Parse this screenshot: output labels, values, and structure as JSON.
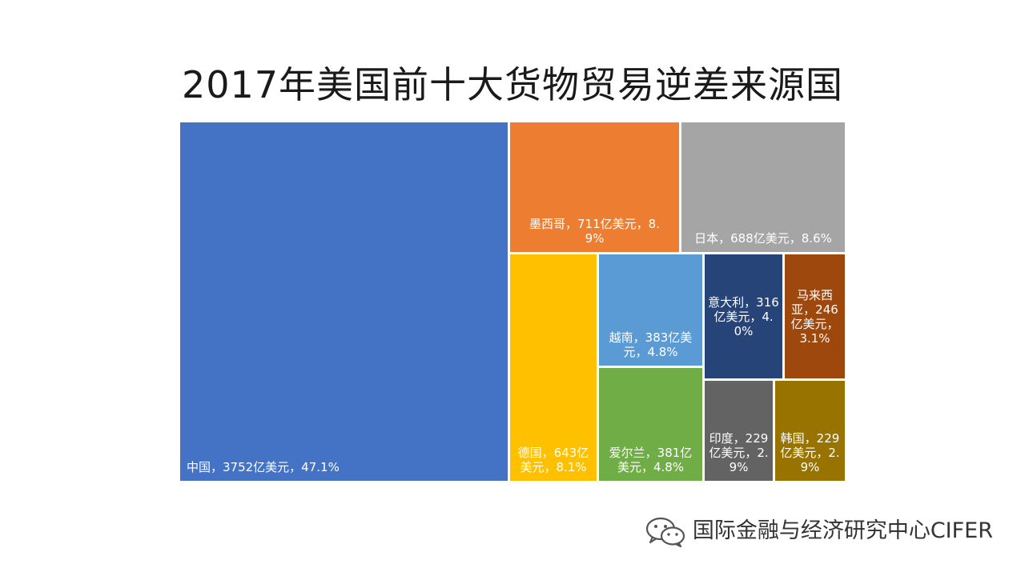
{
  "chart_data": {
    "type": "treemap",
    "title": "2017年美国前十大货物贸易逆差来源国",
    "unit": "亿美元",
    "items": [
      {
        "name": "中国",
        "value": 3752,
        "percent": "47.1%",
        "label": "中国，3752亿美元，47.1%",
        "color": "#4472C4"
      },
      {
        "name": "墨西哥",
        "value": 711,
        "percent": "8.9%",
        "label": "墨西哥，711亿美元，8.9%",
        "color": "#ED7D31"
      },
      {
        "name": "日本",
        "value": 688,
        "percent": "8.6%",
        "label": "日本，688亿美元，8.6%",
        "color": "#A5A5A5"
      },
      {
        "name": "德国",
        "value": 643,
        "percent": "8.1%",
        "label": "德国，643亿美元，8.1%",
        "color": "#FFC000"
      },
      {
        "name": "越南",
        "value": 383,
        "percent": "4.8%",
        "label": "越南，383亿美元，4.8%",
        "color": "#5B9BD5"
      },
      {
        "name": "爱尔兰",
        "value": 381,
        "percent": "4.8%",
        "label": "爱尔兰，381亿美元，4.8%",
        "color": "#70AD47"
      },
      {
        "name": "意大利",
        "value": 316,
        "percent": "4.0%",
        "label": "意大利，316亿美元，4.0%",
        "color": "#264478"
      },
      {
        "name": "马来西亚",
        "value": 246,
        "percent": "3.1%",
        "label": "马来西亚，246亿美元，3.1%",
        "color": "#9E480E"
      },
      {
        "name": "印度",
        "value": 229,
        "percent": "2.9%",
        "label": "印度，229亿美元，2.9%",
        "color": "#636363"
      },
      {
        "name": "韩国",
        "value": 229,
        "percent": "2.9%",
        "label": "韩国，229亿美元，2.9%",
        "color": "#997300"
      }
    ]
  },
  "watermark": {
    "text": "国际金融与经济研究中心CIFER",
    "icon": "wechat-icon"
  }
}
